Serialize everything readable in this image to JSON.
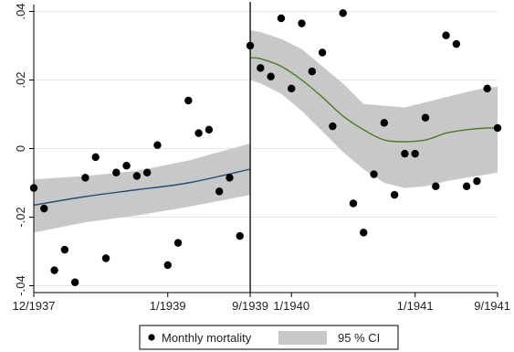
{
  "chart_data": {
    "type": "scatter",
    "title": "",
    "xlabel": "",
    "ylabel": "",
    "x_unit": "months since 12/1937",
    "xlim": [
      0,
      45
    ],
    "ylim": [
      -0.042,
      0.042
    ],
    "cutoff_x": 21,
    "x_ticks": [
      {
        "x": 0,
        "label": "12/1937"
      },
      {
        "x": 13,
        "label": "1/1939"
      },
      {
        "x": 21,
        "label": "9/1939"
      },
      {
        "x": 25,
        "label": "1/1940"
      },
      {
        "x": 37,
        "label": "1/1941"
      },
      {
        "x": 45,
        "label": "9/1941"
      }
    ],
    "y_ticks": [
      {
        "y": 0.04,
        "label": ".04"
      },
      {
        "y": 0.02,
        "label": ".02"
      },
      {
        "y": 0,
        "label": "0"
      },
      {
        "y": -0.02,
        "label": "-.02"
      },
      {
        "y": -0.04,
        "label": "-.04"
      }
    ],
    "grid": true,
    "colors": {
      "points": "#000000",
      "ci_band": "#c8c8c8",
      "fit_pre": "#1f4e79",
      "fit_post": "#4a7a2a",
      "cutoff_line": "#000000",
      "grid": "#e6e6e6",
      "axis": "#000000"
    },
    "series": [
      {
        "name": "Monthly mortality",
        "kind": "points",
        "points": [
          [
            0,
            -0.0115
          ],
          [
            1,
            -0.0175
          ],
          [
            2,
            -0.0355
          ],
          [
            3,
            -0.0295
          ],
          [
            4,
            -0.039
          ],
          [
            5,
            -0.0085
          ],
          [
            6,
            -0.0025
          ],
          [
            7,
            -0.032
          ],
          [
            8,
            -0.007
          ],
          [
            9,
            -0.005
          ],
          [
            10,
            -0.008
          ],
          [
            11,
            -0.007
          ],
          [
            12,
            0.001
          ],
          [
            13,
            -0.034
          ],
          [
            14,
            -0.0275
          ],
          [
            15,
            0.014
          ],
          [
            16,
            0.0045
          ],
          [
            17,
            0.0055
          ],
          [
            18,
            -0.0125
          ],
          [
            19,
            -0.0085
          ],
          [
            20,
            -0.0255
          ],
          [
            21,
            0.03
          ],
          [
            22,
            0.0235
          ],
          [
            23,
            0.021
          ],
          [
            24,
            0.038
          ],
          [
            25,
            0.0175
          ],
          [
            26,
            0.0365
          ],
          [
            27,
            0.0225
          ],
          [
            28,
            0.028
          ],
          [
            29,
            0.0065
          ],
          [
            30,
            0.0395
          ],
          [
            31,
            -0.016
          ],
          [
            32,
            -0.0245
          ],
          [
            33,
            -0.0075
          ],
          [
            34,
            0.0075
          ],
          [
            35,
            -0.0135
          ],
          [
            36,
            -0.0015
          ],
          [
            37,
            -0.0015
          ],
          [
            38,
            0.009
          ],
          [
            39,
            -0.011
          ],
          [
            40,
            0.033
          ],
          [
            41,
            0.0305
          ],
          [
            42,
            -0.011
          ],
          [
            43,
            -0.0095
          ],
          [
            44,
            0.0175
          ],
          [
            45,
            0.006
          ]
        ]
      },
      {
        "name": "95 % CI",
        "kind": "band",
        "segments": [
          {
            "x": [
              0,
              5,
              10,
              15,
              21
            ],
            "lower": [
              -0.0245,
              -0.0215,
              -0.0195,
              -0.017,
              -0.0135
            ],
            "upper": [
              -0.009,
              -0.008,
              -0.0065,
              -0.0035,
              0.0015
            ],
            "fit": [
              -0.0165,
              -0.014,
              -0.012,
              -0.01,
              -0.006
            ]
          },
          {
            "x": [
              21,
              22,
              24,
              26,
              28,
              30,
              32,
              34,
              36,
              38,
              40,
              42,
              44,
              45
            ],
            "lower": [
              0.02,
              0.019,
              0.016,
              0.011,
              0.005,
              -0.001,
              -0.006,
              -0.01,
              -0.0115,
              -0.011,
              -0.0095,
              -0.0085,
              -0.0075,
              -0.007
            ],
            "upper": [
              0.0345,
              0.034,
              0.032,
              0.029,
              0.024,
              0.019,
              0.013,
              0.0125,
              0.012,
              0.0135,
              0.015,
              0.0165,
              0.0178,
              0.018
            ],
            "fit": [
              0.0265,
              0.0262,
              0.024,
              0.02,
              0.015,
              0.0095,
              0.0055,
              0.0025,
              0.002,
              0.0025,
              0.0045,
              0.0055,
              0.006,
              0.0058
            ]
          }
        ]
      }
    ],
    "legend": {
      "placement": "bottom",
      "entries": [
        {
          "label": "Monthly mortality",
          "kind": "point"
        },
        {
          "label": "95 % CI",
          "kind": "band"
        }
      ]
    }
  }
}
